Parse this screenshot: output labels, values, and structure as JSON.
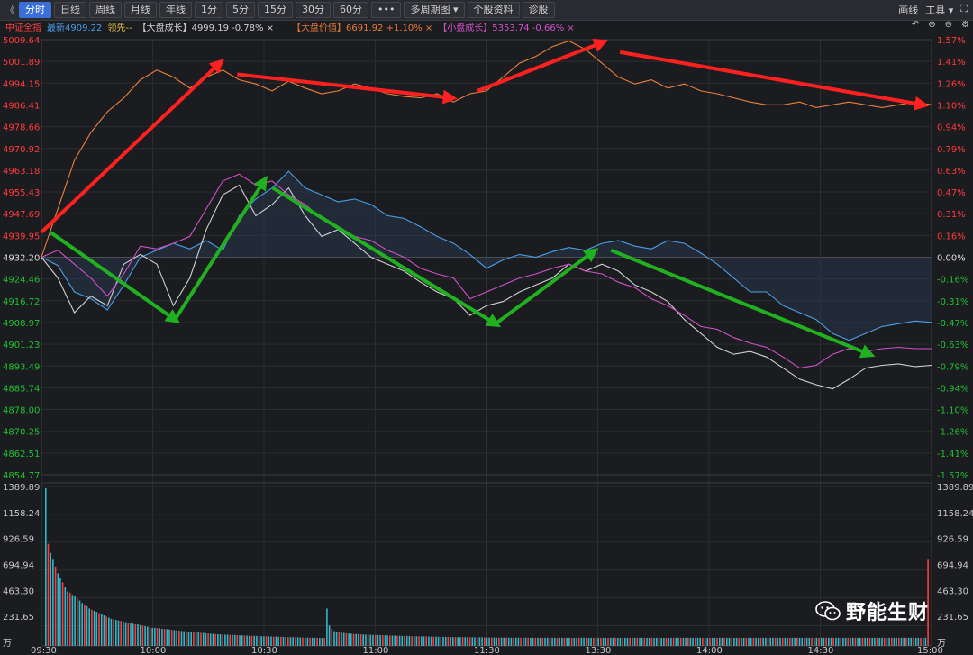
{
  "toolbar": {
    "nav_back": "《",
    "tabs": [
      {
        "label": "分时",
        "active": true
      },
      {
        "label": "日线"
      },
      {
        "label": "周线"
      },
      {
        "label": "月线"
      },
      {
        "label": "年线"
      },
      {
        "label": "1分"
      },
      {
        "label": "5分"
      },
      {
        "label": "15分"
      },
      {
        "label": "30分"
      },
      {
        "label": "60分"
      },
      {
        "label": "•••"
      },
      {
        "label": "多周期图 ▾"
      },
      {
        "label": "个股资料"
      },
      {
        "label": "诊股"
      }
    ],
    "right": {
      "draw": "画线",
      "tools": "工具 ▾",
      "fullscreen": "⛶"
    }
  },
  "legend": {
    "index_name": "中证全指",
    "latest": "最新4909.22",
    "leader": "领先--",
    "items": [
      {
        "label": "【大盘成长】4999.19 -0.78% ×",
        "color": "#d0d0d0"
      },
      {
        "label": "【大盘价值】6691.92 +1.10% ×",
        "color": "#e87a3c"
      },
      {
        "label": "【小盘成长】5353.74 -0.66% ×",
        "color": "#d052c8"
      }
    ],
    "controls": [
      "↶",
      "⊕",
      "⊖",
      "⚙"
    ]
  },
  "colors": {
    "up": "#ff3b3b",
    "down": "#20c030",
    "grid": "#2b2d33",
    "index_line": "#4a9de8",
    "large_growth": "#d0d0d0",
    "large_value": "#e8803c",
    "small_growth": "#d052c8",
    "arrow_red": "#ff2020",
    "arrow_green": "#20b020"
  },
  "chart_data": {
    "type": "line",
    "price_axis_left": [
      "5009.64",
      "5001.89",
      "4994.15",
      "4986.41",
      "4978.66",
      "4970.92",
      "4963.18",
      "4955.43",
      "4947.69",
      "4939.95",
      "4932.20",
      "4924.46",
      "4916.72",
      "4908.97",
      "4901.23",
      "4893.49",
      "4885.74",
      "4878.00",
      "4870.25",
      "4862.51",
      "4854.77"
    ],
    "pct_axis_right": [
      "1.57%",
      "1.41%",
      "1.26%",
      "1.10%",
      "0.94%",
      "0.79%",
      "0.63%",
      "0.47%",
      "0.31%",
      "0.16%",
      "0.00%",
      "-0.16%",
      "-0.31%",
      "-0.47%",
      "-0.63%",
      "-0.79%",
      "-0.94%",
      "-1.10%",
      "-1.26%",
      "-1.41%",
      "-1.57%"
    ],
    "volume_axis": [
      "1389.89",
      "1158.24",
      "926.59",
      "694.94",
      "463.30",
      "231.65",
      "万"
    ],
    "time_axis": [
      "09:30",
      "10:00",
      "10:30",
      "11:00",
      "11:30",
      "13:30",
      "14:00",
      "14:30",
      "15:00"
    ],
    "series": [
      {
        "name": "中证全指",
        "key": "index",
        "pct": [
          0,
          -0.06,
          -0.25,
          -0.3,
          -0.38,
          -0.2,
          0.0,
          0.05,
          0.1,
          0.06,
          0.12,
          0.05,
          0.3,
          0.42,
          0.5,
          0.62,
          0.5,
          0.45,
          0.4,
          0.42,
          0.38,
          0.3,
          0.28,
          0.22,
          0.15,
          0.1,
          0.02,
          -0.08,
          -0.02,
          0.02,
          0.0,
          0.04,
          0.07,
          0.05,
          0.1,
          0.12,
          0.08,
          0.06,
          0.12,
          0.1,
          0.03,
          -0.05,
          -0.15,
          -0.25,
          -0.25,
          -0.35,
          -0.4,
          -0.45,
          -0.55,
          -0.6,
          -0.55,
          -0.5,
          -0.48,
          -0.46,
          -0.47
        ]
      },
      {
        "name": "大盘成长",
        "key": "large_growth",
        "pct": [
          0,
          -0.15,
          -0.4,
          -0.28,
          -0.35,
          -0.05,
          0.02,
          -0.05,
          -0.35,
          -0.15,
          0.2,
          0.45,
          0.52,
          0.3,
          0.38,
          0.5,
          0.3,
          0.15,
          0.2,
          0.1,
          0.0,
          -0.05,
          -0.1,
          -0.18,
          -0.25,
          -0.3,
          -0.42,
          -0.35,
          -0.32,
          -0.25,
          -0.2,
          -0.15,
          -0.05,
          -0.1,
          -0.05,
          -0.1,
          -0.2,
          -0.25,
          -0.32,
          -0.45,
          -0.55,
          -0.65,
          -0.7,
          -0.68,
          -0.72,
          -0.8,
          -0.88,
          -0.92,
          -0.95,
          -0.88,
          -0.8,
          -0.78,
          -0.77,
          -0.79,
          -0.78
        ]
      },
      {
        "name": "小盘成长",
        "key": "small_growth",
        "pct": [
          0,
          0.05,
          -0.05,
          -0.15,
          -0.28,
          -0.12,
          0.08,
          0.06,
          0.1,
          0.15,
          0.35,
          0.55,
          0.6,
          0.52,
          0.55,
          0.45,
          0.38,
          0.28,
          0.22,
          0.15,
          0.12,
          0.05,
          0.0,
          -0.08,
          -0.12,
          -0.15,
          -0.3,
          -0.25,
          -0.2,
          -0.15,
          -0.12,
          -0.08,
          -0.05,
          -0.1,
          -0.12,
          -0.18,
          -0.22,
          -0.3,
          -0.35,
          -0.42,
          -0.5,
          -0.52,
          -0.58,
          -0.62,
          -0.65,
          -0.72,
          -0.8,
          -0.78,
          -0.7,
          -0.66,
          -0.68,
          -0.66,
          -0.65,
          -0.66,
          -0.66
        ]
      },
      {
        "name": "大盘价值",
        "key": "large_value",
        "pct": [
          0,
          0.35,
          0.7,
          0.9,
          1.05,
          1.15,
          1.28,
          1.35,
          1.3,
          1.22,
          1.3,
          1.35,
          1.28,
          1.25,
          1.2,
          1.27,
          1.22,
          1.18,
          1.2,
          1.25,
          1.22,
          1.18,
          1.16,
          1.15,
          1.18,
          1.12,
          1.18,
          1.2,
          1.3,
          1.4,
          1.45,
          1.52,
          1.56,
          1.5,
          1.4,
          1.3,
          1.25,
          1.28,
          1.22,
          1.25,
          1.2,
          1.18,
          1.15,
          1.12,
          1.1,
          1.1,
          1.12,
          1.08,
          1.1,
          1.12,
          1.1,
          1.08,
          1.1,
          1.12,
          1.1
        ]
      }
    ],
    "volume": [
      1390,
      900,
      820,
      760,
      700,
      640,
      600,
      560,
      520,
      480,
      470,
      450,
      440,
      420,
      400,
      380,
      360,
      350,
      330,
      320,
      310,
      300,
      290,
      280,
      270,
      260,
      250,
      240,
      235,
      230,
      225,
      220,
      215,
      210,
      205,
      200,
      195,
      190,
      190,
      185,
      180,
      175,
      170,
      165,
      160,
      160,
      158,
      155,
      152,
      150,
      148,
      145,
      142,
      140,
      138,
      135,
      132,
      130,
      128,
      126,
      125,
      122,
      120,
      118,
      116,
      115,
      113,
      110,
      108,
      107,
      105,
      104,
      103,
      102,
      100,
      100,
      98,
      97,
      96,
      95,
      94,
      93,
      92,
      91,
      90,
      90,
      89,
      88,
      87,
      86,
      85,
      85,
      84,
      83,
      82,
      82,
      81,
      80,
      80,
      79,
      78,
      78,
      77,
      76,
      76,
      75,
      75,
      74,
      74,
      73,
      73,
      72,
      72,
      71,
      71,
      70,
      330,
      180,
      150,
      130,
      125,
      120,
      118,
      115,
      112,
      110,
      108,
      106,
      105,
      104,
      103,
      102,
      100,
      100,
      99,
      98,
      97,
      96,
      95,
      95,
      94,
      93,
      92,
      92,
      91,
      90,
      90,
      89,
      88,
      88,
      87,
      86,
      86,
      85,
      85,
      84,
      84,
      83,
      83,
      82,
      82,
      82,
      81,
      81,
      80,
      80,
      80,
      79,
      79,
      79,
      78,
      78,
      78,
      78,
      77,
      77,
      77,
      76,
      76,
      76,
      76,
      75,
      75,
      75,
      75,
      75,
      74,
      74,
      74,
      74,
      74,
      74,
      73,
      73,
      73,
      73,
      73,
      73,
      73,
      73,
      72,
      72,
      72,
      72,
      72,
      72,
      72,
      72,
      72,
      72,
      72,
      72,
      72,
      72,
      72,
      72,
      72,
      72,
      72,
      72,
      72,
      72,
      72,
      72,
      72,
      72,
      72,
      72,
      72,
      72,
      72,
      72,
      72,
      72,
      72,
      72,
      72,
      72,
      72,
      72,
      72,
      72,
      72,
      72,
      72,
      72,
      72,
      72,
      72,
      72,
      72,
      72,
      72,
      72,
      72,
      72,
      72,
      72,
      72,
      72,
      72,
      72,
      72,
      72,
      72,
      72,
      72,
      72,
      72,
      72,
      72,
      72,
      72,
      72,
      72,
      72,
      72,
      72,
      72,
      72,
      72,
      72,
      72,
      72,
      72,
      72,
      72,
      72,
      72,
      72,
      72,
      72,
      72,
      72,
      72,
      72,
      72,
      72,
      72,
      72,
      72,
      72,
      72,
      72,
      72,
      72,
      72,
      72,
      72,
      72,
      72,
      72,
      72,
      72,
      72,
      72,
      72,
      72,
      72,
      72,
      72,
      72,
      72,
      72,
      72,
      72,
      72,
      72,
      72,
      72,
      72,
      72,
      72,
      72,
      72,
      72,
      72,
      72,
      72,
      72,
      72,
      72,
      72,
      72,
      72,
      72,
      72,
      72,
      72,
      72,
      72,
      72,
      72,
      72,
      72,
      72,
      72,
      72,
      72,
      72,
      72,
      72,
      72,
      72,
      760
    ],
    "arrows_red": [
      [
        0.0,
        0.18
      ],
      [
        0.2,
        1.4
      ],
      [
        0.22,
        1.32
      ],
      [
        0.46,
        1.15
      ],
      [
        0.49,
        1.2
      ],
      [
        0.63,
        1.55
      ],
      [
        0.65,
        1.48
      ],
      [
        0.99,
        1.1
      ]
    ],
    "arrows_green": [
      [
        0.01,
        0.18
      ],
      [
        0.15,
        -0.45
      ],
      [
        0.15,
        -0.45
      ],
      [
        0.25,
        0.55
      ],
      [
        0.26,
        0.5
      ],
      [
        0.51,
        -0.48
      ],
      [
        0.51,
        -0.48
      ],
      [
        0.62,
        0.04
      ],
      [
        0.64,
        0.05
      ],
      [
        0.93,
        -0.7
      ]
    ]
  },
  "watermark": {
    "text": "野能生财"
  }
}
